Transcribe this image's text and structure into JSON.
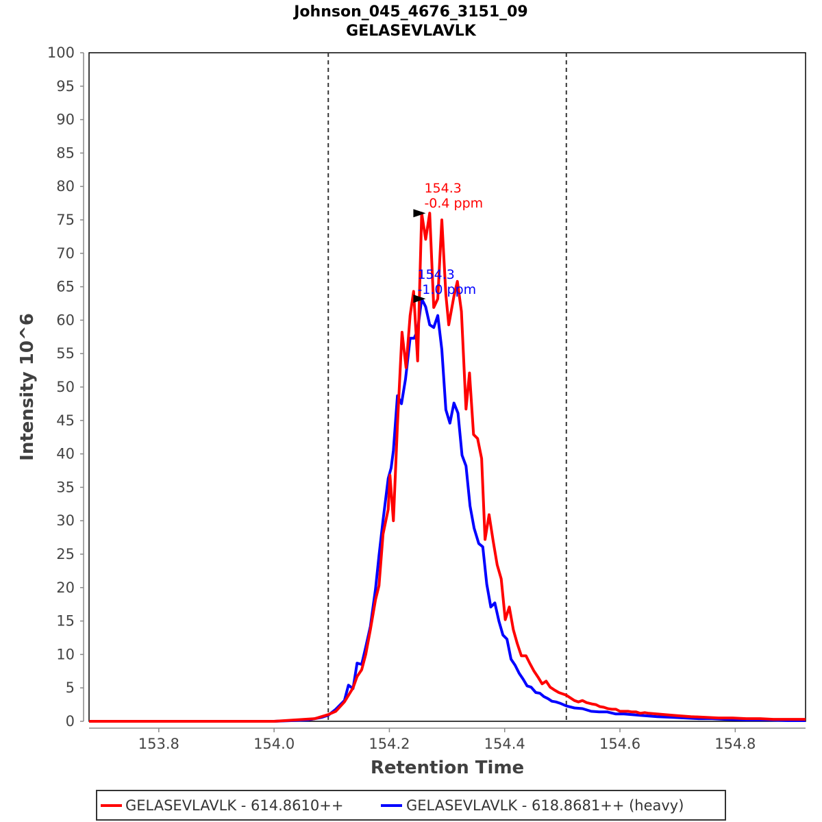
{
  "chart_data": {
    "type": "line",
    "title": "Johnson_045_4676_3151_09",
    "subtitle": "GELASEVLAVLK",
    "xlabel": "Retention Time",
    "ylabel": "Intensity 10^6",
    "xlim": [
      153.679,
      154.922
    ],
    "ylim": [
      0,
      100
    ],
    "x_ticks": [
      153.8,
      154.0,
      154.2,
      154.4,
      154.6,
      154.8
    ],
    "x_tick_labels": [
      "153.8",
      "154.0",
      "154.2",
      "154.4",
      "154.6",
      "154.8"
    ],
    "y_ticks": [
      0,
      5,
      10,
      15,
      20,
      25,
      30,
      35,
      40,
      45,
      50,
      55,
      60,
      65,
      70,
      75,
      80,
      85,
      90,
      95,
      100
    ],
    "y_tick_labels": [
      "0",
      "5",
      "10",
      "15",
      "20",
      "25",
      "30",
      "35",
      "40",
      "45",
      "50",
      "55",
      "60",
      "65",
      "70",
      "75",
      "80",
      "85",
      "90",
      "95",
      "100"
    ],
    "grid": false,
    "legend_position": "bottom",
    "integration_boundaries": [
      154.094,
      154.507
    ],
    "series": [
      {
        "name": "GELASEVLAVLK - 614.8610++",
        "color": "#ff0000",
        "x": [
          153.679,
          153.8,
          154.0,
          154.071,
          154.094,
          154.107,
          154.122,
          154.137,
          154.144,
          154.152,
          154.159,
          154.167,
          154.176,
          154.182,
          154.189,
          154.198,
          154.201,
          154.207,
          154.214,
          154.222,
          154.229,
          154.236,
          154.242,
          154.249,
          154.256,
          154.263,
          154.27,
          154.277,
          154.284,
          154.291,
          154.298,
          154.303,
          154.312,
          154.318,
          154.325,
          154.333,
          154.339,
          154.346,
          154.353,
          154.36,
          154.366,
          154.373,
          154.38,
          154.387,
          154.394,
          154.401,
          154.408,
          154.415,
          154.422,
          154.429,
          154.437,
          154.444,
          154.451,
          154.458,
          154.465,
          154.472,
          154.479,
          154.486,
          154.494,
          154.507,
          154.521,
          154.528,
          154.535,
          154.542,
          154.551,
          154.558,
          154.565,
          154.572,
          154.579,
          154.586,
          154.593,
          154.6,
          154.614,
          154.621,
          154.628,
          154.635,
          154.643,
          154.65,
          154.664,
          154.678,
          154.692,
          154.707,
          154.723,
          154.747,
          154.771,
          154.795,
          154.819,
          154.843,
          154.866,
          154.89,
          154.922
        ],
        "values": [
          0.0,
          0.0,
          0.0,
          0.4,
          1.0,
          1.5,
          2.9,
          5.0,
          6.7,
          7.7,
          10.0,
          13.7,
          18.2,
          20.3,
          28.0,
          31.7,
          36.8,
          30.0,
          44.3,
          58.2,
          52.9,
          60.7,
          64.3,
          53.9,
          76.0,
          72.1,
          76.0,
          61.9,
          63.2,
          75.0,
          63.8,
          59.3,
          63.6,
          65.8,
          61.3,
          46.7,
          52.1,
          42.9,
          42.3,
          39.3,
          27.2,
          30.9,
          27.0,
          23.4,
          21.3,
          15.2,
          17.1,
          13.7,
          11.6,
          9.8,
          9.8,
          8.6,
          7.5,
          6.6,
          5.6,
          6.0,
          5.1,
          4.7,
          4.3,
          3.9,
          3.1,
          2.9,
          3.1,
          2.8,
          2.6,
          2.5,
          2.2,
          2.1,
          1.9,
          1.8,
          1.8,
          1.5,
          1.5,
          1.4,
          1.4,
          1.2,
          1.3,
          1.2,
          1.1,
          1.0,
          0.9,
          0.8,
          0.7,
          0.6,
          0.5,
          0.5,
          0.4,
          0.4,
          0.3,
          0.3,
          0.3
        ]
      },
      {
        "name": "GELASEVLAVLK - 618.8681++ (heavy)",
        "color": "#0000ff",
        "x": [
          153.679,
          153.8,
          154.0,
          154.059,
          154.083,
          154.094,
          154.107,
          154.122,
          154.129,
          154.137,
          154.144,
          154.152,
          154.159,
          154.167,
          154.176,
          154.182,
          154.189,
          154.198,
          154.203,
          154.207,
          154.214,
          154.221,
          154.228,
          154.236,
          154.243,
          154.249,
          154.256,
          154.263,
          154.27,
          154.277,
          154.284,
          154.291,
          154.298,
          154.305,
          154.312,
          154.319,
          154.326,
          154.333,
          154.34,
          154.347,
          154.355,
          154.362,
          154.369,
          154.376,
          154.383,
          154.39,
          154.397,
          154.404,
          154.411,
          154.418,
          154.425,
          154.432,
          154.439,
          154.446,
          154.454,
          154.461,
          154.468,
          154.475,
          154.482,
          154.489,
          154.496,
          154.507,
          154.521,
          154.535,
          154.55,
          154.564,
          154.578,
          154.593,
          154.607,
          154.621,
          154.635,
          154.65,
          154.665,
          154.689,
          154.713,
          154.736,
          154.76,
          154.784,
          154.82,
          154.855,
          154.891,
          154.922
        ],
        "values": [
          0.0,
          0.0,
          0.0,
          0.2,
          0.6,
          0.9,
          1.8,
          3.1,
          5.4,
          4.9,
          8.7,
          8.5,
          11.1,
          14.2,
          19.8,
          24.8,
          30.1,
          36.3,
          37.9,
          40.5,
          48.7,
          47.5,
          51.2,
          57.3,
          57.3,
          58.5,
          63.2,
          62.0,
          59.3,
          58.9,
          60.7,
          55.6,
          46.6,
          44.6,
          47.6,
          46.1,
          39.8,
          38.2,
          32.2,
          28.9,
          26.6,
          26.1,
          20.5,
          17.1,
          17.7,
          15.0,
          12.9,
          12.3,
          9.3,
          8.4,
          7.2,
          6.3,
          5.3,
          5.1,
          4.3,
          4.2,
          3.7,
          3.4,
          3.0,
          2.9,
          2.7,
          2.3,
          2.0,
          1.9,
          1.5,
          1.4,
          1.4,
          1.1,
          1.1,
          1.0,
          0.9,
          0.8,
          0.7,
          0.6,
          0.5,
          0.4,
          0.4,
          0.3,
          0.2,
          0.2,
          0.1,
          0.1
        ]
      }
    ],
    "annotations": [
      {
        "series": 0,
        "x": 154.263,
        "y": 76.0,
        "lines": [
          "154.3",
          "-0.4 ppm"
        ],
        "color": "#ff0000"
      },
      {
        "series": 1,
        "x": 154.263,
        "y": 63.2,
        "lines": [
          "154.3",
          "-1.0 ppm"
        ],
        "color": "#0000ff"
      }
    ]
  }
}
